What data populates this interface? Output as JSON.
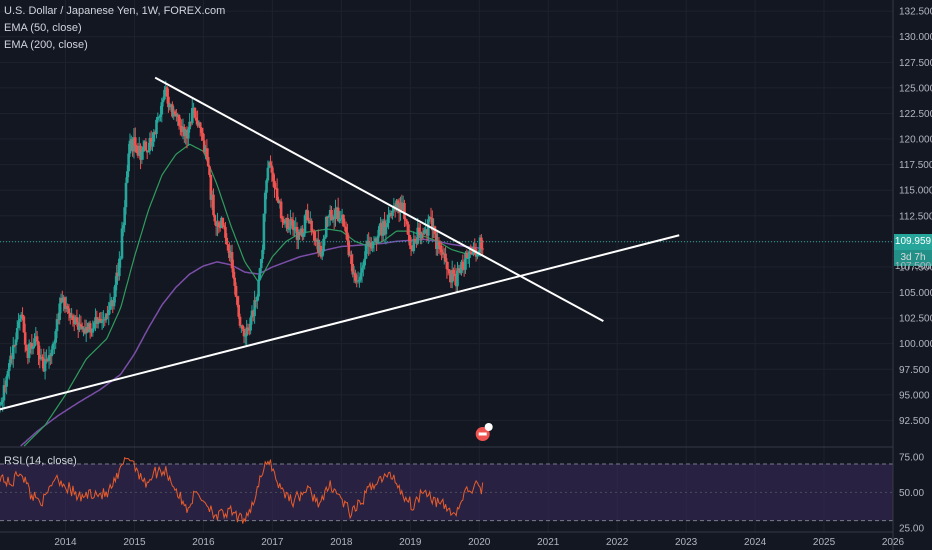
{
  "legend": {
    "symbol": "U.S. Dollar / Japanese Yen, 1W, FOREX.com",
    "ema50": "EMA (50, close)",
    "ema200": "EMA (200, close)",
    "rsi": "RSI (14, close)"
  },
  "badges": {
    "last_price": "109.959",
    "countdown": "3d 7h",
    "next_level": "107.500"
  },
  "colors": {
    "background": "#131722",
    "up": "#26a69a",
    "down": "#ef5350",
    "ema50": "#2f9c5e",
    "ema200": "#7b4ea8",
    "rsi_line": "#e65c2c",
    "rsi_band": "#3a2a5c",
    "trendline": "#ffffff",
    "price_line": "#26a69a"
  },
  "chart_data": [
    {
      "type": "candlestick",
      "title": "",
      "x_ticks": [
        "2014",
        "2015",
        "2016",
        "2017",
        "2018",
        "2019",
        "2020",
        "2021",
        "2022",
        "2023",
        "2024",
        "2025",
        "2026"
      ],
      "y_ticks": [
        "132.500",
        "130.000",
        "127.500",
        "125.000",
        "122.500",
        "120.000",
        "117.500",
        "115.000",
        "112.500",
        "110.000",
        "107.500",
        "105.000",
        "102.500",
        "100.000",
        "97.500",
        "95.000",
        "92.500"
      ],
      "ylim": [
        90.0,
        133.2
      ],
      "xlim": [
        2013.05,
        2026.0
      ],
      "price_anchors": [
        [
          2013.05,
          94.0
        ],
        [
          2013.2,
          98.0
        ],
        [
          2013.35,
          103.0
        ],
        [
          2013.45,
          99.0
        ],
        [
          2013.55,
          100.5
        ],
        [
          2013.7,
          97.5
        ],
        [
          2013.85,
          101.0
        ],
        [
          2013.95,
          104.5
        ],
        [
          2014.05,
          102.5
        ],
        [
          2014.2,
          101.5
        ],
        [
          2014.4,
          101.8
        ],
        [
          2014.6,
          102.5
        ],
        [
          2014.7,
          104.5
        ],
        [
          2014.8,
          109.0
        ],
        [
          2014.88,
          116.0
        ],
        [
          2014.93,
          119.0
        ],
        [
          2015.0,
          119.8
        ],
        [
          2015.1,
          118.5
        ],
        [
          2015.25,
          120.0
        ],
        [
          2015.4,
          123.5
        ],
        [
          2015.45,
          124.5
        ],
        [
          2015.55,
          123.0
        ],
        [
          2015.65,
          121.5
        ],
        [
          2015.75,
          120.0
        ],
        [
          2015.85,
          123.0
        ],
        [
          2015.95,
          120.5
        ],
        [
          2016.05,
          118.0
        ],
        [
          2016.15,
          112.5
        ],
        [
          2016.3,
          111.5
        ],
        [
          2016.45,
          106.5
        ],
        [
          2016.55,
          101.5
        ],
        [
          2016.65,
          101.5
        ],
        [
          2016.75,
          104.0
        ],
        [
          2016.85,
          108.5
        ],
        [
          2016.9,
          115.0
        ],
        [
          2016.96,
          117.5
        ],
        [
          2017.05,
          114.5
        ],
        [
          2017.15,
          112.5
        ],
        [
          2017.3,
          111.5
        ],
        [
          2017.4,
          110.5
        ],
        [
          2017.5,
          112.5
        ],
        [
          2017.6,
          110.0
        ],
        [
          2017.7,
          109.0
        ],
        [
          2017.8,
          112.5
        ],
        [
          2017.9,
          112.5
        ],
        [
          2018.0,
          112.5
        ],
        [
          2018.1,
          109.0
        ],
        [
          2018.2,
          106.0
        ],
        [
          2018.25,
          105.8
        ],
        [
          2018.35,
          109.0
        ],
        [
          2018.45,
          110.0
        ],
        [
          2018.55,
          111.0
        ],
        [
          2018.65,
          111.5
        ],
        [
          2018.75,
          113.0
        ],
        [
          2018.85,
          113.5
        ],
        [
          2018.95,
          112.5
        ],
        [
          2019.0,
          109.0
        ],
        [
          2019.1,
          110.5
        ],
        [
          2019.2,
          111.0
        ],
        [
          2019.3,
          111.8
        ],
        [
          2019.4,
          109.5
        ],
        [
          2019.5,
          108.0
        ],
        [
          2019.6,
          106.5
        ],
        [
          2019.65,
          106.0
        ],
        [
          2019.75,
          107.5
        ],
        [
          2019.85,
          108.8
        ],
        [
          2019.95,
          109.0
        ],
        [
          2020.05,
          109.96
        ]
      ],
      "ema50_anchors": [
        [
          2013.4,
          90.0
        ],
        [
          2013.7,
          92.0
        ],
        [
          2014.0,
          95.0
        ],
        [
          2014.3,
          98.5
        ],
        [
          2014.6,
          100.5
        ],
        [
          2014.8,
          103.5
        ],
        [
          2015.0,
          108.5
        ],
        [
          2015.2,
          113.0
        ],
        [
          2015.4,
          116.5
        ],
        [
          2015.6,
          118.5
        ],
        [
          2015.8,
          119.5
        ],
        [
          2016.0,
          118.8
        ],
        [
          2016.2,
          115.5
        ],
        [
          2016.4,
          111.5
        ],
        [
          2016.6,
          108.0
        ],
        [
          2016.8,
          106.0
        ],
        [
          2017.0,
          108.5
        ],
        [
          2017.2,
          110.0
        ],
        [
          2017.4,
          110.8
        ],
        [
          2017.6,
          111.0
        ],
        [
          2017.8,
          111.2
        ],
        [
          2018.0,
          111.0
        ],
        [
          2018.2,
          110.0
        ],
        [
          2018.4,
          109.5
        ],
        [
          2018.6,
          110.0
        ],
        [
          2018.8,
          111.0
        ],
        [
          2019.0,
          111.0
        ],
        [
          2019.2,
          110.5
        ],
        [
          2019.4,
          110.0
        ],
        [
          2019.6,
          109.2
        ],
        [
          2019.8,
          108.8
        ],
        [
          2020.05,
          109.0
        ]
      ],
      "ema200_anchors": [
        [
          2013.35,
          90.0
        ],
        [
          2013.6,
          91.5
        ],
        [
          2013.9,
          93.0
        ],
        [
          2014.2,
          94.3
        ],
        [
          2014.5,
          95.5
        ],
        [
          2014.8,
          97.0
        ],
        [
          2015.0,
          99.0
        ],
        [
          2015.2,
          101.5
        ],
        [
          2015.4,
          103.8
        ],
        [
          2015.6,
          105.5
        ],
        [
          2015.8,
          106.8
        ],
        [
          2016.0,
          107.6
        ],
        [
          2016.2,
          108.0
        ],
        [
          2016.4,
          107.7
        ],
        [
          2016.6,
          107.0
        ],
        [
          2016.8,
          106.8
        ],
        [
          2017.0,
          107.5
        ],
        [
          2017.2,
          108.0
        ],
        [
          2017.4,
          108.5
        ],
        [
          2017.6,
          108.8
        ],
        [
          2017.8,
          109.2
        ],
        [
          2018.0,
          109.5
        ],
        [
          2018.2,
          109.6
        ],
        [
          2018.4,
          109.7
        ],
        [
          2018.6,
          109.8
        ],
        [
          2018.8,
          110.0
        ],
        [
          2019.0,
          110.1
        ],
        [
          2019.2,
          110.2
        ],
        [
          2019.4,
          110.0
        ],
        [
          2019.6,
          109.7
        ],
        [
          2019.8,
          109.5
        ],
        [
          2020.05,
          109.3
        ]
      ],
      "trendlines": [
        {
          "from": [
            2015.3,
            126.0
          ],
          "to": [
            2021.8,
            102.2
          ]
        },
        {
          "from": [
            2013.0,
            93.5
          ],
          "to": [
            2022.9,
            110.6
          ]
        }
      ],
      "last_price": 109.959
    },
    {
      "type": "line",
      "title": "",
      "y_ticks": [
        "75.00",
        "50.00",
        "25.00"
      ],
      "ylim": [
        22,
        82
      ],
      "bands": [
        30,
        70
      ],
      "rsi_anchors": [
        [
          2013.05,
          62
        ],
        [
          2013.2,
          55
        ],
        [
          2013.35,
          66
        ],
        [
          2013.5,
          48
        ],
        [
          2013.7,
          44
        ],
        [
          2013.85,
          62
        ],
        [
          2014.0,
          55
        ],
        [
          2014.2,
          46
        ],
        [
          2014.4,
          50
        ],
        [
          2014.6,
          48
        ],
        [
          2014.75,
          60
        ],
        [
          2014.9,
          76
        ],
        [
          2015.0,
          70
        ],
        [
          2015.15,
          56
        ],
        [
          2015.3,
          64
        ],
        [
          2015.45,
          66
        ],
        [
          2015.6,
          52
        ],
        [
          2015.75,
          38
        ],
        [
          2015.9,
          50
        ],
        [
          2016.05,
          42
        ],
        [
          2016.2,
          33
        ],
        [
          2016.4,
          36
        ],
        [
          2016.55,
          30
        ],
        [
          2016.7,
          40
        ],
        [
          2016.85,
          62
        ],
        [
          2016.95,
          74
        ],
        [
          2017.1,
          54
        ],
        [
          2017.3,
          44
        ],
        [
          2017.5,
          52
        ],
        [
          2017.7,
          42
        ],
        [
          2017.85,
          56
        ],
        [
          2018.0,
          45
        ],
        [
          2018.15,
          34
        ],
        [
          2018.3,
          44
        ],
        [
          2018.45,
          56
        ],
        [
          2018.6,
          60
        ],
        [
          2018.75,
          62
        ],
        [
          2018.9,
          48
        ],
        [
          2019.05,
          40
        ],
        [
          2019.2,
          54
        ],
        [
          2019.35,
          44
        ],
        [
          2019.5,
          40
        ],
        [
          2019.65,
          34
        ],
        [
          2019.8,
          50
        ],
        [
          2019.95,
          54
        ],
        [
          2020.05,
          53
        ]
      ]
    }
  ]
}
